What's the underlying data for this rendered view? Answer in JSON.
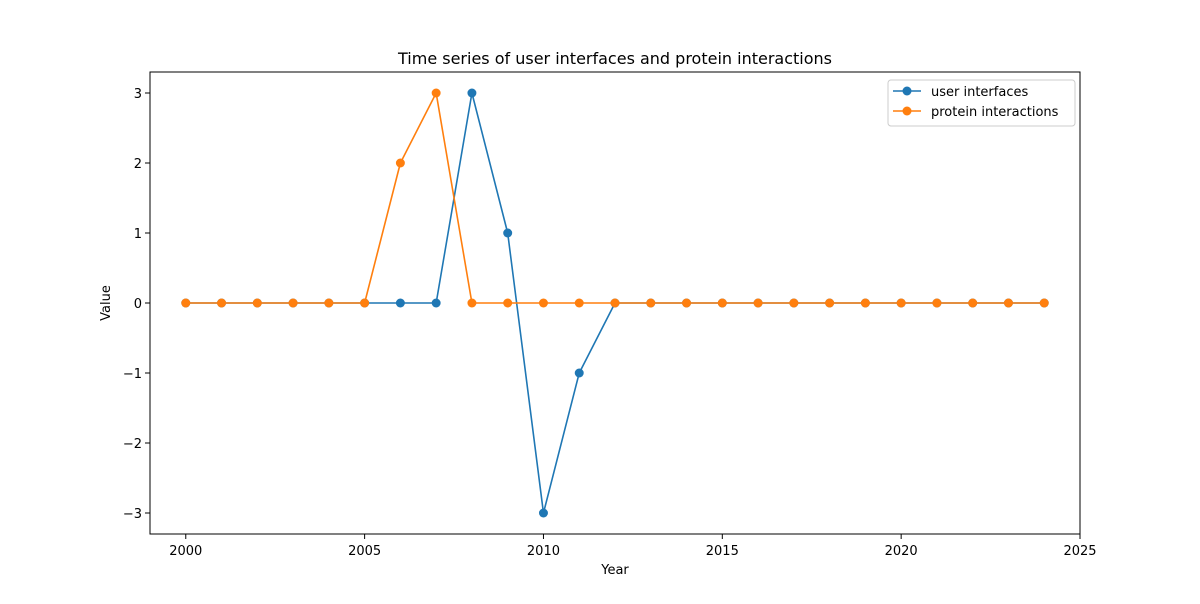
{
  "chart_data": {
    "type": "line",
    "title": "Time series of user interfaces and protein interactions",
    "xlabel": "Year",
    "ylabel": "Value",
    "xlim": [
      1999,
      2025
    ],
    "ylim": [
      -3.3,
      3.3
    ],
    "xticks": [
      2000,
      2005,
      2010,
      2015,
      2020,
      2025
    ],
    "yticks": [
      -3,
      -2,
      -1,
      0,
      1,
      2,
      3
    ],
    "ytick_labels": [
      "−3",
      "−2",
      "−1",
      "0",
      "1",
      "2",
      "3"
    ],
    "grid": false,
    "legend_position": "top-right",
    "x": [
      2000,
      2001,
      2002,
      2003,
      2004,
      2005,
      2006,
      2007,
      2008,
      2009,
      2010,
      2011,
      2012,
      2013,
      2014,
      2015,
      2016,
      2017,
      2018,
      2019,
      2020,
      2021,
      2022,
      2023,
      2024
    ],
    "series": [
      {
        "name": "user interfaces",
        "color": "#1f77b4",
        "values": [
          0,
          0,
          0,
          0,
          0,
          0,
          0,
          0,
          3,
          1,
          -3,
          -1,
          0,
          0,
          0,
          0,
          0,
          0,
          0,
          0,
          0,
          0,
          0,
          0,
          0
        ]
      },
      {
        "name": "protein interactions",
        "color": "#ff7f0e",
        "values": [
          0,
          0,
          0,
          0,
          0,
          0,
          2,
          3,
          0,
          0,
          0,
          0,
          0,
          0,
          0,
          0,
          0,
          0,
          0,
          0,
          0,
          0,
          0,
          0,
          0
        ]
      }
    ]
  }
}
